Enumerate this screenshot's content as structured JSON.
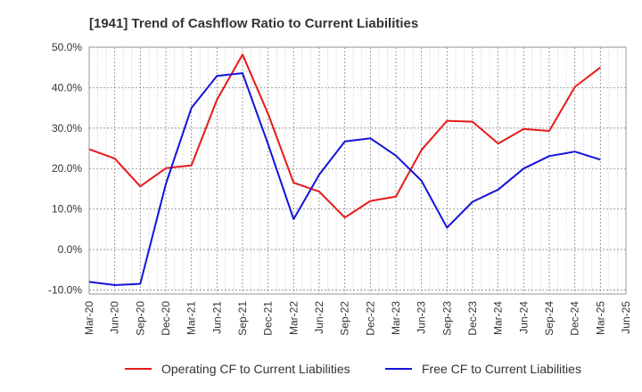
{
  "chart_data": {
    "type": "line",
    "title": "[1941]  Trend of Cashflow Ratio to Current Liabilities",
    "xlabel": "",
    "ylabel": "",
    "ylim": [
      -11,
      50
    ],
    "yticks": [
      -10,
      0,
      10,
      20,
      30,
      40,
      50
    ],
    "ytick_labels": [
      "-10.0%",
      "0.0%",
      "10.0%",
      "20.0%",
      "30.0%",
      "40.0%",
      "50.0%"
    ],
    "x_tick_labels": [
      "Mar-20",
      "Jun-20",
      "Sep-20",
      "Dec-20",
      "Mar-21",
      "Jun-21",
      "Sep-21",
      "Dec-21",
      "Mar-22",
      "Jun-22",
      "Sep-22",
      "Dec-22",
      "Mar-23",
      "Jun-23",
      "Sep-23",
      "Dec-23",
      "Mar-24",
      "Jun-24",
      "Sep-24",
      "Dec-24",
      "Mar-25",
      "Jun-25"
    ],
    "grid": true,
    "legend_position": "bottom",
    "series": [
      {
        "name": "Operating CF to Current Liabilities",
        "color": "#e8191a",
        "x": [
          "Mar-20",
          "Jun-20",
          "Sep-20",
          "Dec-20",
          "Mar-21",
          "Jun-21",
          "Sep-21",
          "Dec-21",
          "Mar-22",
          "Jun-22",
          "Sep-22",
          "Dec-22",
          "Mar-23",
          "Jun-23",
          "Sep-23",
          "Dec-23",
          "Mar-24",
          "Jun-24",
          "Sep-24",
          "Dec-24",
          "Mar-25"
        ],
        "values": [
          24.8,
          22.5,
          15.6,
          20.1,
          20.8,
          37.0,
          48.2,
          33.5,
          16.5,
          14.3,
          7.9,
          12.0,
          13.1,
          24.6,
          31.8,
          31.6,
          26.2,
          29.8,
          29.3,
          40.2,
          45.0
        ]
      },
      {
        "name": "Free CF to Current Liabilities",
        "color": "#1414d8",
        "x": [
          "Mar-20",
          "Jun-20",
          "Sep-20",
          "Dec-20",
          "Mar-21",
          "Jun-21",
          "Sep-21",
          "Dec-21",
          "Mar-22",
          "Jun-22",
          "Sep-22",
          "Dec-22",
          "Mar-23",
          "Jun-23",
          "Sep-23",
          "Dec-23",
          "Mar-24",
          "Jun-24",
          "Sep-24",
          "Dec-24",
          "Mar-25"
        ],
        "values": [
          -8.0,
          -8.8,
          -8.5,
          16.2,
          35.0,
          42.9,
          43.6,
          26.0,
          7.5,
          18.5,
          26.7,
          27.5,
          23.2,
          17.0,
          5.4,
          11.8,
          14.8,
          20.0,
          23.1,
          24.2,
          22.2
        ]
      }
    ]
  }
}
